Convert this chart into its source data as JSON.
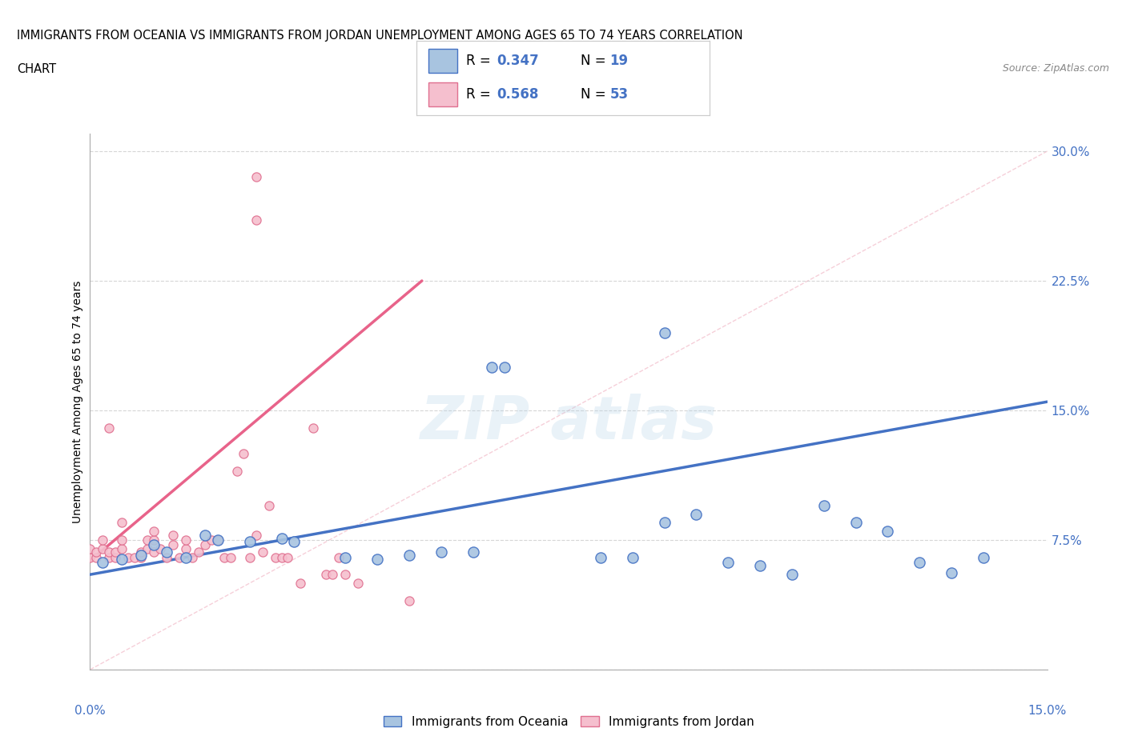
{
  "title_line1": "IMMIGRANTS FROM OCEANIA VS IMMIGRANTS FROM JORDAN UNEMPLOYMENT AMONG AGES 65 TO 74 YEARS CORRELATION",
  "title_line2": "CHART",
  "source": "Source: ZipAtlas.com",
  "ylabel": "Unemployment Among Ages 65 to 74 years",
  "ytick_vals": [
    0.0,
    0.075,
    0.15,
    0.225,
    0.3
  ],
  "ytick_labels": [
    "",
    "7.5%",
    "15.0%",
    "22.5%",
    "30.0%"
  ],
  "xlim": [
    0.0,
    0.15
  ],
  "ylim": [
    0.0,
    0.31
  ],
  "color_oceania_fill": "#a8c4e0",
  "color_oceania_edge": "#4472c4",
  "color_jordan_fill": "#f5bfce",
  "color_jordan_edge": "#e07090",
  "color_oceania_line": "#4472c4",
  "color_jordan_line": "#e8638a",
  "color_diagonal": "#f0b0c0",
  "oceania_scatter_x": [
    0.002,
    0.005,
    0.008,
    0.01,
    0.012,
    0.015,
    0.018,
    0.02,
    0.025,
    0.03,
    0.032,
    0.04,
    0.045,
    0.05,
    0.055,
    0.06,
    0.065,
    0.08,
    0.085,
    0.09,
    0.095,
    0.1,
    0.105,
    0.11,
    0.115,
    0.12,
    0.125,
    0.13,
    0.135,
    0.14
  ],
  "oceania_scatter_y": [
    0.062,
    0.064,
    0.066,
    0.072,
    0.068,
    0.065,
    0.078,
    0.075,
    0.074,
    0.076,
    0.074,
    0.065,
    0.064,
    0.066,
    0.068,
    0.068,
    0.175,
    0.065,
    0.065,
    0.085,
    0.09,
    0.062,
    0.06,
    0.055,
    0.095,
    0.085,
    0.08,
    0.062,
    0.056,
    0.065
  ],
  "jordan_scatter_x": [
    0.0,
    0.0,
    0.001,
    0.001,
    0.002,
    0.002,
    0.003,
    0.003,
    0.004,
    0.004,
    0.005,
    0.005,
    0.005,
    0.006,
    0.007,
    0.008,
    0.008,
    0.009,
    0.009,
    0.01,
    0.01,
    0.01,
    0.011,
    0.012,
    0.013,
    0.013,
    0.014,
    0.015,
    0.015,
    0.016,
    0.017,
    0.018,
    0.019,
    0.02,
    0.021,
    0.022,
    0.023,
    0.024,
    0.025,
    0.026,
    0.027,
    0.028,
    0.029,
    0.03,
    0.031,
    0.033,
    0.035,
    0.037,
    0.038,
    0.039,
    0.04,
    0.042,
    0.05
  ],
  "jordan_scatter_y": [
    0.065,
    0.07,
    0.065,
    0.068,
    0.07,
    0.075,
    0.065,
    0.068,
    0.065,
    0.068,
    0.07,
    0.075,
    0.085,
    0.065,
    0.065,
    0.065,
    0.068,
    0.07,
    0.075,
    0.068,
    0.075,
    0.08,
    0.07,
    0.065,
    0.072,
    0.078,
    0.065,
    0.07,
    0.075,
    0.065,
    0.068,
    0.072,
    0.075,
    0.075,
    0.065,
    0.065,
    0.115,
    0.125,
    0.065,
    0.078,
    0.068,
    0.095,
    0.065,
    0.065,
    0.065,
    0.05,
    0.14,
    0.055,
    0.055,
    0.065,
    0.055,
    0.05,
    0.04
  ],
  "oceania_line_x0": 0.0,
  "oceania_line_y0": 0.055,
  "oceania_line_x1": 0.15,
  "oceania_line_y1": 0.155,
  "jordan_line_x0": 0.0,
  "jordan_line_y0": 0.063,
  "jordan_line_x1": 0.052,
  "jordan_line_y1": 0.225
}
